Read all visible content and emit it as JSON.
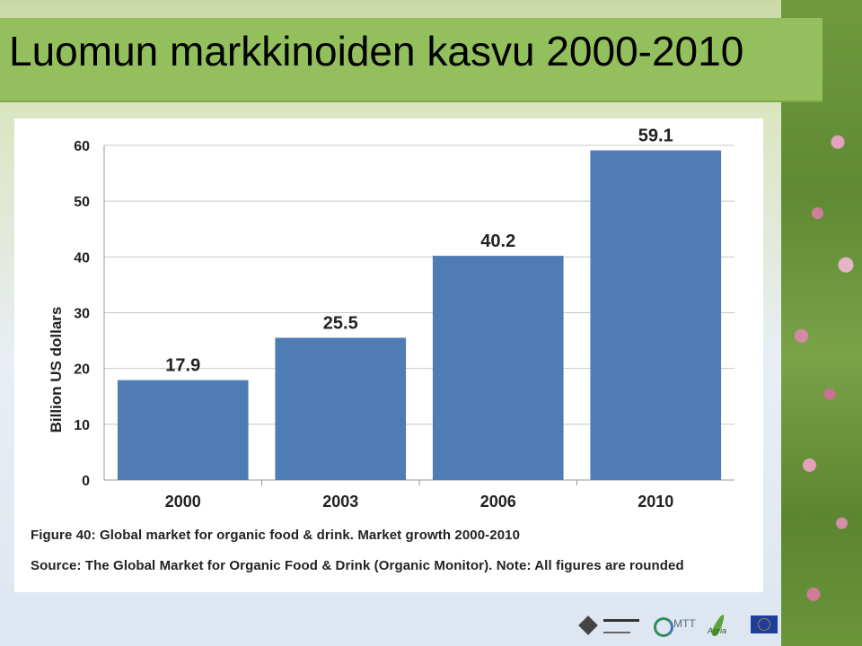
{
  "slide": {
    "title": "Luomun markkinoiden kasvu 2000-2010"
  },
  "caption": {
    "figure": "Figure 40: Global market for organic food & drink. Market growth 2000-2010",
    "source": "Source: The Global Market for Organic Food & Drink (Organic Monitor). Note: All figures are rounded"
  },
  "logos": {
    "mtt": "MTT",
    "agria": "Agria"
  },
  "chart_data": {
    "type": "bar",
    "categories": [
      "2000",
      "2003",
      "2006",
      "2010"
    ],
    "values": [
      17.9,
      25.5,
      40.2,
      59.1
    ],
    "data_labels": [
      "17.9",
      "25.5",
      "40.2",
      "59.1"
    ],
    "title": "",
    "xlabel": "",
    "ylabel": "Billion US dollars",
    "ylim": [
      0,
      60
    ],
    "yticks": [
      0,
      10,
      20,
      30,
      40,
      50,
      60
    ],
    "grid": true,
    "bar_color": "#4f7db3"
  }
}
